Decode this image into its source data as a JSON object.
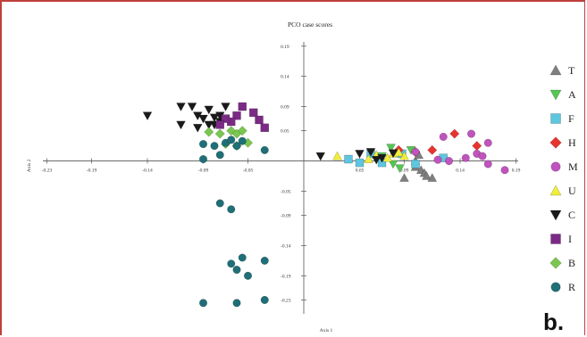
{
  "chart_data": {
    "type": "scatter",
    "title": "PCO case scores",
    "xlabel": "Axis 1",
    "ylabel": "Axis 2",
    "xlim": [
      -0.24,
      0.2
    ],
    "ylim": [
      -0.25,
      0.2
    ],
    "x_ticks": [
      "-0.23",
      "-0.19",
      "-0.14",
      "-0.09",
      "-0.05",
      "0.05",
      "0.09",
      "0.14",
      "0.19"
    ],
    "x_tick_values": [
      -0.23,
      -0.19,
      -0.14,
      -0.09,
      -0.05,
      0.05,
      0.09,
      0.14,
      0.19
    ],
    "y_ticks": [
      "0.19",
      "0.14",
      "0.09",
      "0.05",
      "-0.05",
      "-0.09",
      "-0.14",
      "-0.19",
      "-0.23"
    ],
    "y_tick_values": [
      0.19,
      0.14,
      0.09,
      0.05,
      -0.05,
      -0.09,
      -0.14,
      -0.19,
      -0.23
    ],
    "legend_position": "right",
    "panel_label": "b.",
    "series": [
      {
        "name": "T",
        "marker": "triangle-up",
        "color": "#7f7f7f",
        "points": [
          [
            0.1,
            0.0
          ],
          [
            0.1,
            -0.01
          ],
          [
            0.105,
            -0.015
          ],
          [
            0.108,
            -0.02
          ],
          [
            0.11,
            -0.025
          ],
          [
            0.09,
            -0.028
          ],
          [
            0.115,
            -0.028
          ],
          [
            0.103,
            0.01
          ]
        ]
      },
      {
        "name": "A",
        "marker": "triangle-down",
        "color": "#55c653",
        "points": [
          [
            0.085,
            0.012
          ],
          [
            0.07,
            0.008
          ],
          [
            0.08,
            -0.005
          ],
          [
            0.086,
            -0.012
          ],
          [
            0.078,
            0.022
          ],
          [
            0.096,
            0.018
          ]
        ]
      },
      {
        "name": "F",
        "marker": "square",
        "color": "#5ec6de",
        "points": [
          [
            0.04,
            0.003
          ],
          [
            0.05,
            -0.003
          ],
          [
            0.06,
            0.012
          ],
          [
            0.1,
            -0.005
          ],
          [
            0.125,
            0.005
          ],
          [
            0.07,
            -0.003
          ],
          [
            0.088,
            0.012
          ]
        ]
      },
      {
        "name": "H",
        "marker": "diamond",
        "color": "#e8342f",
        "points": [
          [
            0.085,
            0.018
          ],
          [
            0.115,
            0.018
          ],
          [
            0.135,
            0.045
          ],
          [
            0.155,
            0.025
          ],
          [
            0.1,
            0.015
          ]
        ]
      },
      {
        "name": "M",
        "marker": "circle",
        "color": "#c053bd",
        "points": [
          [
            0.1,
            0.015
          ],
          [
            0.125,
            0.04
          ],
          [
            0.15,
            0.045
          ],
          [
            0.165,
            0.03
          ],
          [
            0.155,
            0.012
          ],
          [
            0.165,
            -0.005
          ],
          [
            0.13,
            0.0
          ],
          [
            0.12,
            0.002
          ],
          [
            0.16,
            0.008
          ],
          [
            0.18,
            -0.015
          ],
          [
            0.145,
            0.005
          ]
        ]
      },
      {
        "name": "U",
        "marker": "triangle-up",
        "color": "#f2ee3a",
        "points": [
          [
            0.03,
            0.008
          ],
          [
            0.065,
            0.01
          ],
          [
            0.08,
            0.012
          ],
          [
            0.09,
            0.008
          ],
          [
            0.058,
            0.003
          ],
          [
            0.075,
            0.005
          ],
          [
            0.085,
            0.014
          ]
        ]
      },
      {
        "name": "C",
        "marker": "triangle-down",
        "color": "#1a1a1a",
        "points": [
          [
            -0.14,
            0.075
          ],
          [
            -0.11,
            0.09
          ],
          [
            -0.1,
            0.09
          ],
          [
            -0.095,
            0.075
          ],
          [
            -0.085,
            0.085
          ],
          [
            -0.09,
            0.07
          ],
          [
            -0.08,
            0.072
          ],
          [
            -0.075,
            0.065
          ],
          [
            -0.07,
            0.09
          ],
          [
            -0.085,
            0.06
          ],
          [
            -0.11,
            0.06
          ],
          [
            -0.095,
            0.055
          ],
          [
            -0.08,
            0.06
          ],
          [
            -0.075,
            0.075
          ],
          [
            0.015,
            0.008
          ],
          [
            0.05,
            0.012
          ],
          [
            0.06,
            0.015
          ],
          [
            0.065,
            0.002
          ],
          [
            0.07,
            0.005
          ],
          [
            0.08,
            0.013
          ]
        ]
      },
      {
        "name": "I",
        "marker": "square",
        "color": "#7b2a86",
        "points": [
          [
            -0.055,
            0.09
          ],
          [
            -0.045,
            0.08
          ],
          [
            -0.04,
            0.068
          ],
          [
            -0.035,
            0.055
          ],
          [
            -0.06,
            0.075
          ],
          [
            -0.065,
            0.065
          ],
          [
            -0.07,
            0.07
          ],
          [
            -0.075,
            0.06
          ]
        ]
      },
      {
        "name": "B",
        "marker": "diamond",
        "color": "#7ac74f",
        "points": [
          [
            -0.085,
            0.048
          ],
          [
            -0.075,
            0.045
          ],
          [
            -0.065,
            0.05
          ],
          [
            -0.06,
            0.045
          ],
          [
            -0.055,
            0.05
          ],
          [
            -0.05,
            0.03
          ],
          [
            -0.06,
            0.025
          ],
          [
            -0.07,
            0.028
          ]
        ]
      },
      {
        "name": "R",
        "marker": "circle",
        "color": "#1f6f77",
        "points": [
          [
            -0.09,
            0.028
          ],
          [
            -0.08,
            0.025
          ],
          [
            -0.07,
            0.03
          ],
          [
            -0.06,
            0.025
          ],
          [
            -0.055,
            0.033
          ],
          [
            -0.065,
            0.035
          ],
          [
            -0.075,
            0.01
          ],
          [
            -0.09,
            0.003
          ],
          [
            -0.035,
            0.018
          ],
          [
            -0.075,
            -0.07
          ],
          [
            -0.065,
            -0.08
          ],
          [
            -0.055,
            -0.16
          ],
          [
            -0.065,
            -0.17
          ],
          [
            -0.06,
            -0.18
          ],
          [
            -0.05,
            -0.19
          ],
          [
            -0.035,
            -0.165
          ],
          [
            -0.09,
            -0.235
          ],
          [
            -0.06,
            -0.235
          ],
          [
            -0.035,
            -0.23
          ]
        ]
      }
    ]
  }
}
